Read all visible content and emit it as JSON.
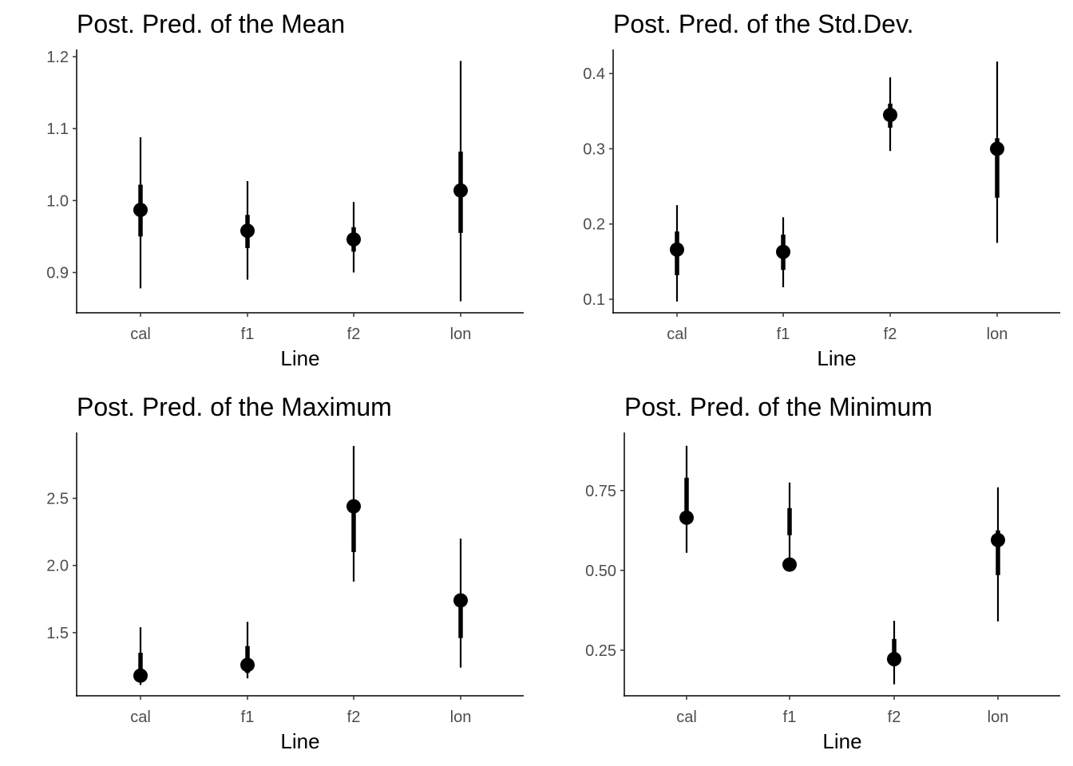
{
  "chart_data": [
    {
      "type": "pointrange",
      "title": "Post. Pred. of the Mean",
      "xlabel": "Line",
      "ylabel": "",
      "categories": [
        "cal",
        "f1",
        "f2",
        "lon"
      ],
      "yticks": [
        0.9,
        1.0,
        1.1,
        1.2
      ],
      "ytick_labels": [
        "0.9",
        "1.0",
        "1.1",
        "1.2"
      ],
      "ylim": [
        0.844,
        1.21
      ],
      "series": [
        {
          "points": [
            {
              "x": "cal",
              "y": 0.987,
              "inner": [
                0.95,
                1.022
              ],
              "outer": [
                0.878,
                1.088
              ]
            },
            {
              "x": "f1",
              "y": 0.958,
              "inner": [
                0.934,
                0.98
              ],
              "outer": [
                0.89,
                1.027
              ]
            },
            {
              "x": "f2",
              "y": 0.946,
              "inner": [
                0.929,
                0.963
              ],
              "outer": [
                0.9,
                0.998
              ]
            },
            {
              "x": "lon",
              "y": 1.014,
              "inner": [
                0.955,
                1.068
              ],
              "outer": [
                0.86,
                1.194
              ]
            }
          ]
        }
      ],
      "grid": false,
      "legend": "none"
    },
    {
      "type": "pointrange",
      "title": "Post. Pred. of the Std.Dev.",
      "xlabel": "Line",
      "ylabel": "",
      "categories": [
        "cal",
        "f1",
        "f2",
        "lon"
      ],
      "yticks": [
        0.1,
        0.2,
        0.3,
        0.4
      ],
      "ytick_labels": [
        "0.1",
        "0.2",
        "0.3",
        "0.4"
      ],
      "ylim": [
        0.082,
        0.432
      ],
      "series": [
        {
          "points": [
            {
              "x": "cal",
              "y": 0.166,
              "inner": [
                0.132,
                0.19
              ],
              "outer": [
                0.097,
                0.225
              ]
            },
            {
              "x": "f1",
              "y": 0.163,
              "inner": [
                0.139,
                0.186
              ],
              "outer": [
                0.116,
                0.209
              ]
            },
            {
              "x": "f2",
              "y": 0.345,
              "inner": [
                0.328,
                0.36
              ],
              "outer": [
                0.297,
                0.395
              ]
            },
            {
              "x": "lon",
              "y": 0.3,
              "inner": [
                0.235,
                0.314
              ],
              "outer": [
                0.175,
                0.416
              ]
            }
          ]
        }
      ],
      "grid": false,
      "legend": "none"
    },
    {
      "type": "pointrange",
      "title": "Post. Pred. of the Maximum",
      "xlabel": "Line",
      "ylabel": "",
      "categories": [
        "cal",
        "f1",
        "f2",
        "lon"
      ],
      "yticks": [
        1.5,
        2.0,
        2.5
      ],
      "ytick_labels": [
        "1.5",
        "2.0",
        "2.5"
      ],
      "ylim": [
        1.03,
        2.99
      ],
      "series": [
        {
          "points": [
            {
              "x": "cal",
              "y": 1.18,
              "inner": [
                1.13,
                1.35
              ],
              "outer": [
                1.11,
                1.54
              ]
            },
            {
              "x": "f1",
              "y": 1.26,
              "inner": [
                1.2,
                1.4
              ],
              "outer": [
                1.16,
                1.58
              ]
            },
            {
              "x": "f2",
              "y": 2.44,
              "inner": [
                2.1,
                2.47
              ],
              "outer": [
                1.88,
                2.89
              ]
            },
            {
              "x": "lon",
              "y": 1.74,
              "inner": [
                1.46,
                1.78
              ],
              "outer": [
                1.24,
                2.2
              ]
            }
          ]
        }
      ],
      "grid": false,
      "legend": "none"
    },
    {
      "type": "pointrange",
      "title": "Post. Pred. of the Minimum",
      "xlabel": "Line",
      "ylabel": "",
      "categories": [
        "cal",
        "f1",
        "f2",
        "lon"
      ],
      "yticks": [
        0.25,
        0.5,
        0.75
      ],
      "ytick_labels": [
        "0.25",
        "0.50",
        "0.75"
      ],
      "ylim": [
        0.107,
        0.932
      ],
      "series": [
        {
          "points": [
            {
              "x": "cal",
              "y": 0.665,
              "inner": [
                0.655,
                0.79
              ],
              "outer": [
                0.555,
                0.89
              ]
            },
            {
              "x": "f1",
              "y": 0.518,
              "inner": [
                0.61,
                0.695
              ],
              "outer": [
                0.53,
                0.775
              ]
            },
            {
              "x": "f2",
              "y": 0.222,
              "inner": [
                0.2,
                0.285
              ],
              "outer": [
                0.143,
                0.342
              ]
            },
            {
              "x": "lon",
              "y": 0.595,
              "inner": [
                0.485,
                0.625
              ],
              "outer": [
                0.34,
                0.76
              ]
            }
          ]
        }
      ],
      "grid": false,
      "legend": "none"
    }
  ]
}
